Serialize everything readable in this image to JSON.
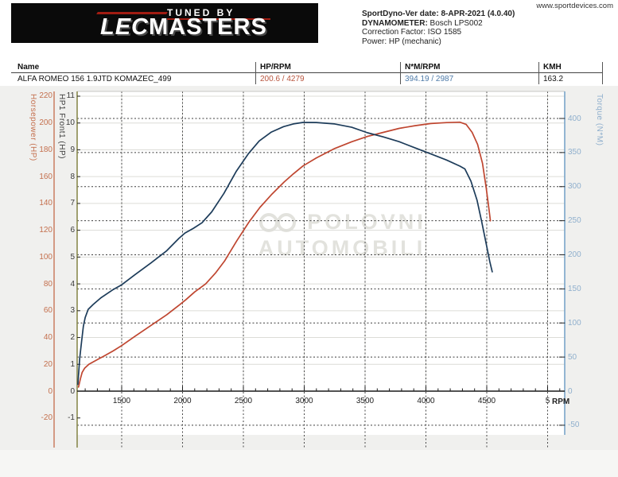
{
  "header": {
    "website": "www.sportdevices.com",
    "logo": {
      "tagline": "TUNED BY",
      "brand_left": "LEC",
      "brand_right": "MASTERS"
    },
    "info": [
      {
        "label": "SportDyno-Ver date:",
        "value": " 8-APR-2021 (4.0.40)"
      },
      {
        "label": "DYNAMOMETER:",
        "value": " Bosch LPS002"
      },
      {
        "label": "Correction Factor:",
        "value": " ISO 1585"
      },
      {
        "label": "Power:",
        "value": " HP (mechanic)"
      }
    ]
  },
  "table": {
    "columns": [
      "Name",
      "HP/RPM",
      "N*M/RPM",
      "KMH"
    ],
    "row": {
      "name": "ALFA ROMEO 156 1.9JTD KOMAZEC_499",
      "hp_rpm": "200.6 / 4279",
      "nm_rpm": "394.19 / 2987",
      "kmh": "163.2"
    }
  },
  "watermark": {
    "line1": "POLOVNI",
    "line2": "AUTOMOBILI"
  },
  "chart_data": {
    "type": "line",
    "title": "",
    "x_axis": {
      "unit": "RPM",
      "min": 1130,
      "max": 5140,
      "major_ticks": [
        1500,
        2000,
        2500,
        3000,
        3500,
        4000,
        4500,
        5000
      ],
      "tick_labels": [
        "1500",
        "2000",
        "2500",
        "3000",
        "3500",
        "4000",
        "4500",
        "5"
      ],
      "minor_step": 100,
      "grid": "dashed"
    },
    "y_axes": [
      {
        "id": "hp",
        "label": "Horsepower (HP)",
        "min": -20,
        "max": 220,
        "step": 20,
        "color": "#c4704e",
        "side": "left"
      },
      {
        "id": "hp1",
        "label": "HP1 Front1 (HP)",
        "min": -1,
        "max": 11,
        "step": 1,
        "color": "#3a3a3a",
        "side": "left"
      },
      {
        "id": "torque",
        "label": "Torque (N*M)",
        "min": -50,
        "max": 400,
        "step": 50,
        "color": "#8fafcd",
        "side": "right"
      }
    ],
    "series": [
      {
        "name": "HP1 Front1",
        "unit": "HP",
        "axis": "hp",
        "color": "#bf4630",
        "peak_label": "200.6 / 4279",
        "points": [
          [
            1145,
            3
          ],
          [
            1160,
            9
          ],
          [
            1175,
            14
          ],
          [
            1195,
            17
          ],
          [
            1230,
            20
          ],
          [
            1270,
            22
          ],
          [
            1350,
            26
          ],
          [
            1430,
            30
          ],
          [
            1500,
            34
          ],
          [
            1610,
            41
          ],
          [
            1740,
            49
          ],
          [
            1870,
            57
          ],
          [
            1970,
            64
          ],
          [
            2025,
            68
          ],
          [
            2100,
            74
          ],
          [
            2190,
            80
          ],
          [
            2270,
            88
          ],
          [
            2345,
            97
          ],
          [
            2445,
            112
          ],
          [
            2545,
            126
          ],
          [
            2635,
            137
          ],
          [
            2735,
            147
          ],
          [
            2835,
            156
          ],
          [
            2910,
            162
          ],
          [
            2990,
            168
          ],
          [
            3100,
            174
          ],
          [
            3250,
            181
          ],
          [
            3390,
            186
          ],
          [
            3520,
            190
          ],
          [
            3650,
            193
          ],
          [
            3780,
            196
          ],
          [
            3910,
            198
          ],
          [
            4040,
            199.6
          ],
          [
            4170,
            200.3
          ],
          [
            4279,
            200.6
          ],
          [
            4330,
            199
          ],
          [
            4380,
            193
          ],
          [
            4425,
            184
          ],
          [
            4465,
            170
          ],
          [
            4495,
            152
          ],
          [
            4515,
            138
          ],
          [
            4530,
            127
          ]
        ]
      },
      {
        "name": "Torque",
        "unit": "N*M",
        "axis": "torque",
        "color": "#1d3c5a",
        "peak_label": "394.19 / 2987",
        "points": [
          [
            1140,
            10
          ],
          [
            1155,
            48
          ],
          [
            1170,
            72
          ],
          [
            1185,
            95
          ],
          [
            1200,
            108
          ],
          [
            1225,
            120
          ],
          [
            1265,
            127
          ],
          [
            1330,
            137
          ],
          [
            1430,
            149
          ],
          [
            1500,
            156
          ],
          [
            1610,
            171
          ],
          [
            1740,
            188
          ],
          [
            1870,
            206
          ],
          [
            1970,
            224
          ],
          [
            2020,
            232
          ],
          [
            2090,
            239
          ],
          [
            2160,
            247
          ],
          [
            2240,
            263
          ],
          [
            2340,
            290
          ],
          [
            2440,
            322
          ],
          [
            2540,
            348
          ],
          [
            2630,
            367
          ],
          [
            2730,
            380
          ],
          [
            2830,
            388
          ],
          [
            2910,
            392
          ],
          [
            2990,
            394.19
          ],
          [
            3100,
            394
          ],
          [
            3250,
            392
          ],
          [
            3390,
            387
          ],
          [
            3520,
            379
          ],
          [
            3650,
            373
          ],
          [
            3780,
            366
          ],
          [
            3910,
            357
          ],
          [
            4040,
            348
          ],
          [
            4170,
            339
          ],
          [
            4280,
            330
          ],
          [
            4320,
            326
          ],
          [
            4370,
            308
          ],
          [
            4420,
            280
          ],
          [
            4460,
            247
          ],
          [
            4500,
            212
          ],
          [
            4525,
            190
          ],
          [
            4545,
            175
          ]
        ]
      }
    ]
  }
}
